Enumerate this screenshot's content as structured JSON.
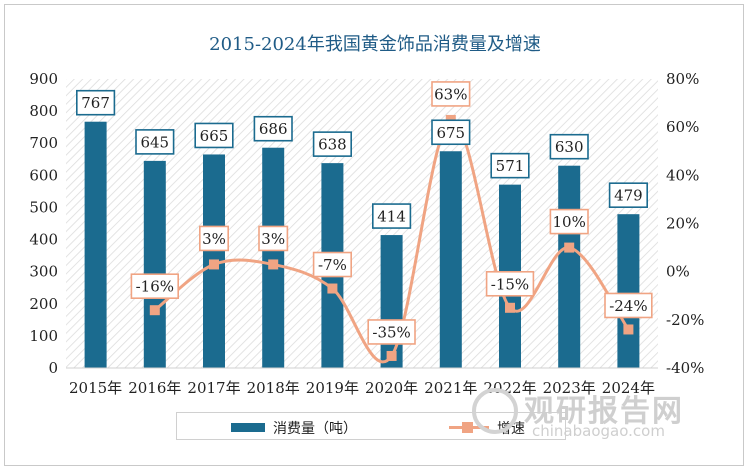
{
  "watermark": {
    "text": "观研报告网",
    "url": "chinabaogao.com"
  },
  "chart_data": {
    "type": "bar+line",
    "title": "2015-2024年我国黄金饰品消费量及增速",
    "categories": [
      "2015年",
      "2016年",
      "2017年",
      "2018年",
      "2019年",
      "2020年",
      "2021年",
      "2022年",
      "2023年",
      "2024年"
    ],
    "series": [
      {
        "name": "消费量（吨）",
        "type": "bar",
        "axis": "left",
        "color": "#1b6b8f",
        "values": [
          767,
          645,
          665,
          686,
          638,
          414,
          675,
          571,
          630,
          479
        ],
        "labels": [
          "767",
          "645",
          "665",
          "686",
          "638",
          "414",
          "675",
          "571",
          "630",
          "479"
        ]
      },
      {
        "name": "增速",
        "type": "line",
        "axis": "right",
        "color": "#f0a483",
        "values": [
          null,
          -16,
          3,
          3,
          -7,
          -35,
          63,
          -15,
          10,
          -24
        ],
        "labels": [
          "",
          "-16%",
          "3%",
          "3%",
          "-7%",
          "-35%",
          "63%",
          "-15%",
          "10%",
          "-24%"
        ]
      }
    ],
    "y_left": {
      "min": 0,
      "max": 900,
      "step": 100,
      "ticks": [
        "0",
        "100",
        "200",
        "300",
        "400",
        "500",
        "600",
        "700",
        "800",
        "900"
      ]
    },
    "y_right": {
      "min": -40,
      "max": 80,
      "step": 20,
      "ticks": [
        "-40%",
        "-20%",
        "0%",
        "20%",
        "40%",
        "60%",
        "80%"
      ]
    },
    "grid": false,
    "legend_position": "bottom"
  }
}
